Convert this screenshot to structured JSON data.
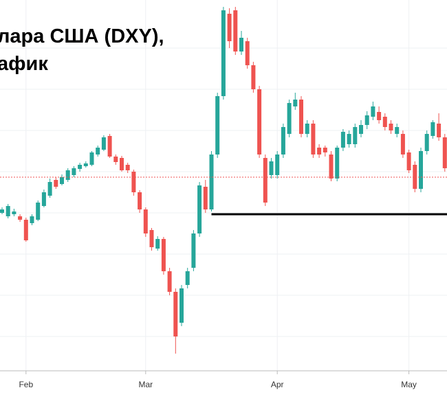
{
  "chart_data": {
    "type": "candlestick",
    "title": [
      "лара США (DXY),",
      "афик"
    ],
    "categories": [
      null,
      null,
      null,
      null,
      "Feb",
      null,
      null,
      null,
      null,
      null,
      null,
      null,
      null,
      null,
      null,
      null,
      null,
      null,
      null,
      null,
      null,
      null,
      null,
      null,
      "Mar",
      null,
      null,
      null,
      null,
      null,
      null,
      null,
      null,
      null,
      null,
      null,
      null,
      null,
      null,
      null,
      null,
      null,
      null,
      null,
      null,
      null,
      "Apr",
      null,
      null,
      null,
      null,
      null,
      null,
      null,
      null,
      null,
      null,
      null,
      null,
      null,
      null,
      null,
      null,
      null,
      null,
      null,
      null,
      null,
      "May",
      null,
      null,
      null,
      null,
      null,
      null
    ],
    "open": [
      290,
      285,
      288,
      285,
      280,
      275,
      280,
      300,
      315,
      338,
      332,
      338,
      345,
      354,
      358,
      360,
      375,
      382,
      402,
      372,
      370,
      360,
      350,
      320,
      295,
      265,
      238,
      252,
      205,
      175,
      130,
      185,
      210,
      260,
      328,
      295,
      375,
      460,
      580,
      585,
      525,
      540,
      505,
      470,
      370,
      345,
      345,
      375,
      405,
      445,
      455,
      405,
      420,
      385,
      385,
      375,
      340,
      385,
      390,
      390,
      405,
      418,
      430,
      437,
      430,
      420,
      405,
      405,
      378,
      360,
      325,
      380,
      402,
      420,
      400
    ],
    "high": [
      298,
      303,
      296,
      288,
      283,
      288,
      308,
      324,
      340,
      342,
      346,
      355,
      358,
      363,
      365,
      380,
      388,
      403,
      405,
      375,
      373,
      363,
      353,
      323,
      298,
      268,
      256,
      255,
      210,
      180,
      185,
      210,
      265,
      335,
      338,
      380,
      465,
      590,
      588,
      590,
      555,
      545,
      510,
      475,
      375,
      370,
      380,
      420,
      455,
      465,
      460,
      425,
      425,
      390,
      388,
      380,
      388,
      412,
      410,
      420,
      425,
      438,
      452,
      445,
      435,
      425,
      420,
      410,
      382,
      365,
      385,
      410,
      425,
      435,
      405
    ],
    "low": [
      288,
      282,
      285,
      277,
      248,
      272,
      278,
      298,
      312,
      325,
      330,
      335,
      342,
      350,
      356,
      358,
      372,
      380,
      370,
      360,
      350,
      348,
      315,
      290,
      255,
      235,
      235,
      200,
      170,
      85,
      125,
      180,
      205,
      255,
      290,
      292,
      370,
      455,
      530,
      520,
      520,
      500,
      465,
      370,
      300,
      340,
      340,
      370,
      400,
      440,
      400,
      400,
      370,
      370,
      372,
      336,
      336,
      380,
      385,
      385,
      400,
      412,
      425,
      420,
      410,
      405,
      400,
      370,
      348,
      320,
      320,
      375,
      398,
      395,
      350
    ],
    "close": [
      295,
      300,
      292,
      280,
      250,
      285,
      305,
      320,
      335,
      328,
      342,
      352,
      355,
      360,
      362,
      378,
      385,
      400,
      372,
      364,
      352,
      352,
      320,
      295,
      260,
      240,
      252,
      205,
      175,
      110,
      180,
      205,
      260,
      330,
      295,
      375,
      460,
      585,
      540,
      525,
      545,
      505,
      470,
      375,
      305,
      365,
      375,
      415,
      450,
      455,
      405,
      420,
      375,
      375,
      378,
      340,
      385,
      408,
      405,
      415,
      418,
      432,
      445,
      425,
      415,
      410,
      415,
      375,
      352,
      325,
      380,
      405,
      422,
      400,
      355
    ],
    "up_color": "#26a69a",
    "down_color": "#ef5350",
    "ylim": [
      60,
      600
    ],
    "price_line": {
      "value": 342,
      "color": "#ef5350"
    },
    "level_line": {
      "value": 288,
      "start": 35,
      "color": "#000000"
    }
  }
}
